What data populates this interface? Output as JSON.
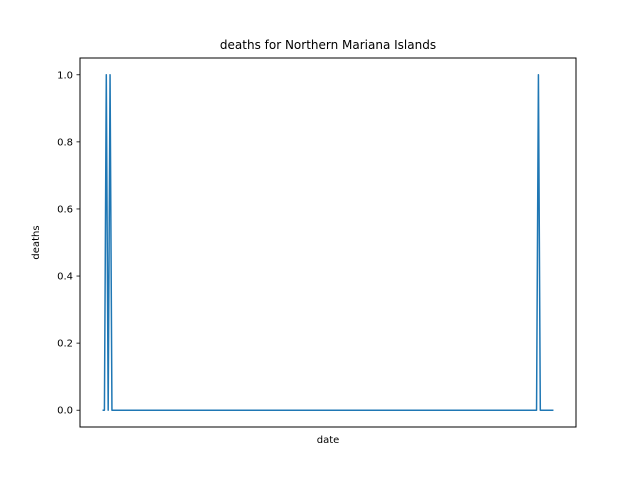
{
  "chart_data": {
    "type": "line",
    "title": "deaths for Northern Mariana Islands",
    "xlabel": "date",
    "ylabel": "deaths",
    "ylim": [
      -0.05,
      1.05
    ],
    "y_ticks": [
      "0.0",
      "0.2",
      "0.4",
      "0.6",
      "0.8",
      "1.0"
    ],
    "x_tick_labels_visible": false,
    "grid": false,
    "series": [
      {
        "color": "#1f77b4",
        "x": [
          0,
          1,
          2,
          3,
          4,
          5,
          6,
          7,
          230,
          231,
          232,
          233,
          240
        ],
        "y": [
          0,
          0,
          1,
          0,
          1,
          0,
          0,
          0,
          0,
          0,
          1,
          0,
          0
        ]
      }
    ]
  }
}
